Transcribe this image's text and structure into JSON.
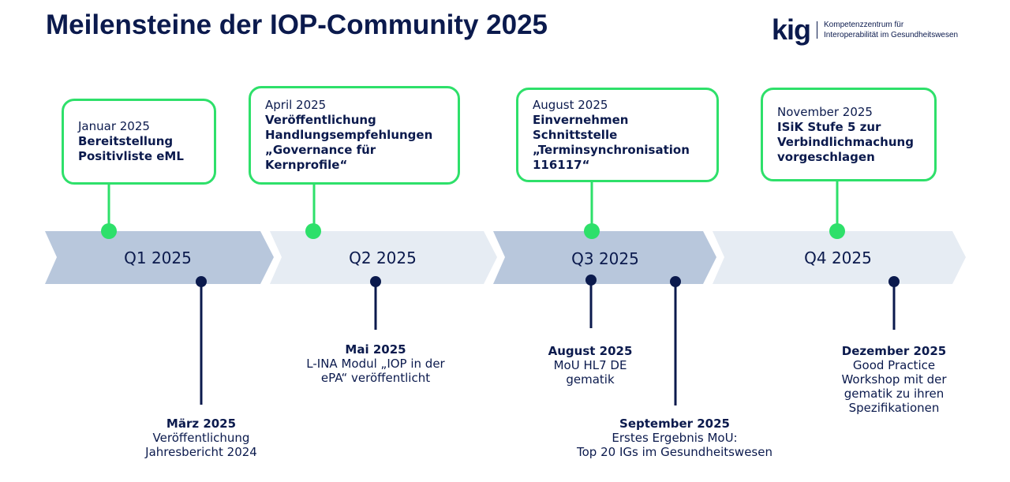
{
  "title": "Meilensteine der IOP-Community 2025",
  "logo": {
    "mark": "kig",
    "line1": "Kompetenzzentrum für",
    "line2": "Interoperabilität im Gesundheitswesen"
  },
  "colors": {
    "navy": "#0b1a4d",
    "green": "#2ee06a",
    "chevron_dark": "#b8c7dc",
    "chevron_light": "#e6ecf3"
  },
  "quarters": [
    "Q1 2025",
    "Q2 2025",
    "Q3 2025",
    "Q4 2025"
  ],
  "top_milestones": [
    {
      "date": "Januar 2025",
      "text": "Bereitstellung Positivliste  eML"
    },
    {
      "date": "April 2025",
      "text": "Veröffentlichung Handlungsempfehlungen „Governance für Kernprofile“"
    },
    {
      "date": "August 2025",
      "text": "Einvernehmen Schnittstelle „Terminsynchronisation 116117“"
    },
    {
      "date": "November 2025",
      "text": "ISiK Stufe 5 zur Verbindlichmachung vorgeschlagen"
    }
  ],
  "bottom_milestones": [
    {
      "date": "März 2025",
      "line1": "Veröffentlichung",
      "line2": "Jahresbericht 2024"
    },
    {
      "date": "Mai 2025",
      "line1": "L-INA Modul „IOP in der",
      "line2": "ePA“ veröffentlicht"
    },
    {
      "date": "August  2025",
      "line1": "MoU HL7 DE",
      "line2": "gematik"
    },
    {
      "date": "September 2025",
      "line1": "Erstes Ergebnis MoU:",
      "line2": "Top 20 IGs im Gesundheitswesen"
    },
    {
      "date": "Dezember 2025",
      "line1": "Good Practice",
      "line2": "Workshop mit der",
      "line3": "gematik zu ihren",
      "line4": "Spezifikationen"
    }
  ]
}
